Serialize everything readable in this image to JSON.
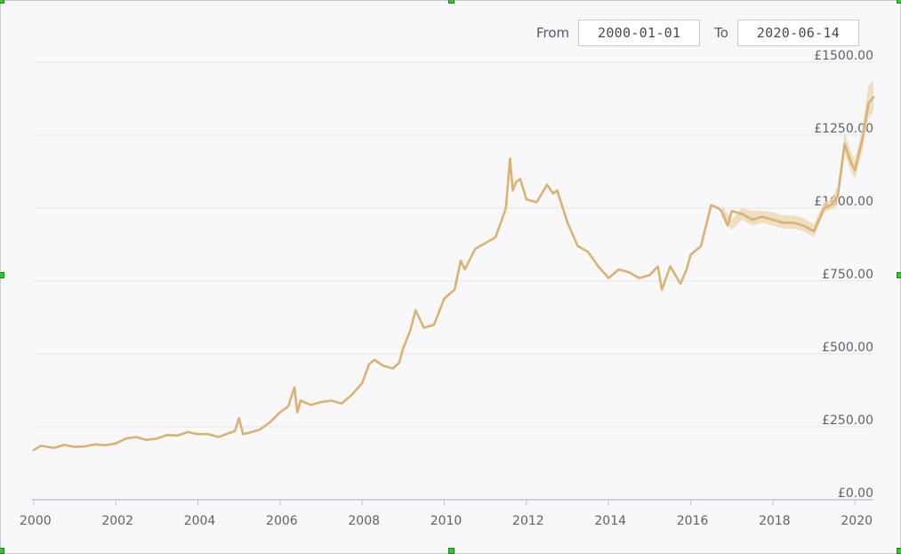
{
  "range": {
    "from_label": "From",
    "from_value": "2000-01-01",
    "to_label": "To",
    "to_value": "2020-06-14"
  },
  "colors": {
    "line": "#d9b274",
    "band": "#ecd5ae",
    "grid": "#e4e6ea",
    "axis": "#b8c4d6",
    "background": "#f8f8fb"
  },
  "chart_data": {
    "type": "line",
    "title": "",
    "xlabel": "",
    "ylabel": "",
    "xlim": [
      1999.96,
      2020.45
    ],
    "ylim": [
      0,
      1500
    ],
    "grid": true,
    "y_ticks": [
      "£0.00",
      "£250.00",
      "£500.00",
      "£750.00",
      "£1000.00",
      "£1250.00",
      "£1500.00"
    ],
    "y_tick_values": [
      0,
      250,
      500,
      750,
      1000,
      1250,
      1500
    ],
    "x_ticks": [
      "2000",
      "2002",
      "2004",
      "2006",
      "2008",
      "2010",
      "2012",
      "2014",
      "2016",
      "2018",
      "2020"
    ],
    "x_tick_values": [
      2000,
      2002,
      2004,
      2006,
      2008,
      2010,
      2012,
      2014,
      2016,
      2018,
      2020
    ],
    "series": [
      {
        "x": [
          2000.0,
          2000.17,
          2000.5,
          2000.75,
          2001.0,
          2001.25,
          2001.5,
          2001.75,
          2002.0,
          2002.25,
          2002.5,
          2002.75,
          2003.0,
          2003.25,
          2003.5,
          2003.75,
          2004.0,
          2004.25,
          2004.5,
          2004.75,
          2004.9,
          2005.0,
          2005.1,
          2005.25,
          2005.5,
          2005.75,
          2006.0,
          2006.2,
          2006.35,
          2006.42,
          2006.5,
          2006.75,
          2007.0,
          2007.25,
          2007.5,
          2007.75,
          2008.0,
          2008.17,
          2008.3,
          2008.5,
          2008.75,
          2008.9,
          2009.0,
          2009.17,
          2009.3,
          2009.5,
          2009.75,
          2010.0,
          2010.25,
          2010.4,
          2010.5,
          2010.75,
          2011.0,
          2011.25,
          2011.5,
          2011.6,
          2011.67,
          2011.75,
          2011.85,
          2012.0,
          2012.25,
          2012.5,
          2012.65,
          2012.75,
          2013.0,
          2013.25,
          2013.5,
          2013.75,
          2014.0,
          2014.25,
          2014.5,
          2014.75,
          2015.0,
          2015.2,
          2015.3,
          2015.5,
          2015.67,
          2015.75,
          2015.9,
          2016.0,
          2016.25,
          2016.5,
          2016.67,
          2016.75,
          2016.9,
          2017.0,
          2017.25,
          2017.5,
          2017.75,
          2018.0,
          2018.25,
          2018.5,
          2018.75,
          2019.0,
          2019.25,
          2019.42,
          2019.58,
          2019.75,
          2019.92,
          2020.0,
          2020.17,
          2020.33,
          2020.45
        ],
        "y": [
          170,
          185,
          178,
          188,
          181,
          183,
          190,
          187,
          193,
          210,
          215,
          205,
          210,
          222,
          220,
          232,
          225,
          225,
          215,
          228,
          235,
          280,
          225,
          230,
          240,
          265,
          300,
          320,
          385,
          300,
          340,
          325,
          335,
          340,
          330,
          360,
          400,
          465,
          480,
          460,
          450,
          470,
          520,
          580,
          650,
          590,
          600,
          690,
          720,
          820,
          790,
          860,
          880,
          900,
          1000,
          1170,
          1060,
          1090,
          1100,
          1030,
          1020,
          1080,
          1050,
          1060,
          950,
          870,
          850,
          800,
          760,
          790,
          780,
          760,
          770,
          800,
          720,
          800,
          760,
          740,
          790,
          840,
          870,
          1010,
          1000,
          990,
          940,
          990,
          980,
          960,
          970,
          960,
          950,
          950,
          940,
          920,
          1000,
          1010,
          1040,
          1220,
          1150,
          1130,
          1230,
          1360,
          1380
        ],
        "band_x": [
          2016.75,
          2017.0,
          2017.25,
          2017.5,
          2017.75,
          2018.0,
          2018.25,
          2018.5,
          2018.75,
          2019.0,
          2019.25,
          2019.42,
          2019.58,
          2019.75,
          2019.92,
          2020.0,
          2020.17,
          2020.33,
          2020.45
        ],
        "band_lo": [
          970,
          925,
          960,
          940,
          950,
          940,
          930,
          930,
          920,
          900,
          985,
          995,
          1010,
          1185,
          1120,
          1100,
          1190,
          1310,
          1330
        ],
        "band_hi": [
          1010,
          960,
          1000,
          990,
          990,
          985,
          975,
          975,
          965,
          945,
          1020,
          1030,
          1075,
          1260,
          1185,
          1170,
          1265,
          1420,
          1440
        ]
      }
    ]
  }
}
